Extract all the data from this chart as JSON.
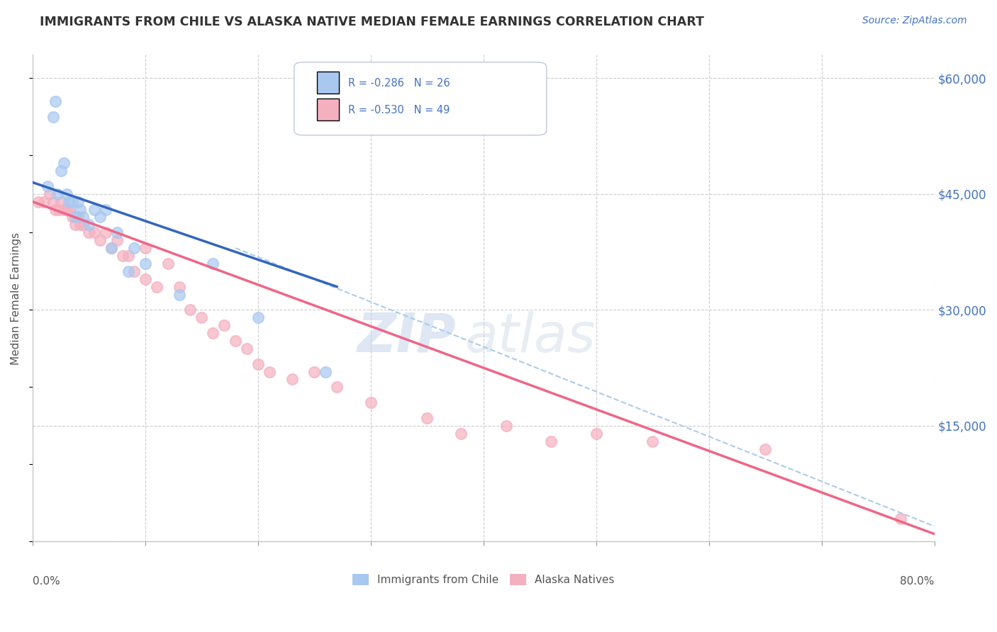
{
  "title": "IMMIGRANTS FROM CHILE VS ALASKA NATIVE MEDIAN FEMALE EARNINGS CORRELATION CHART",
  "source": "Source: ZipAtlas.com",
  "ylabel": "Median Female Earnings",
  "y_ticks": [
    0,
    15000,
    30000,
    45000,
    60000
  ],
  "y_tick_labels": [
    "",
    "$15,000",
    "$30,000",
    "$45,000",
    "$60,000"
  ],
  "x_ticks": [
    0.0,
    0.1,
    0.2,
    0.3,
    0.4,
    0.5,
    0.6,
    0.7,
    0.8
  ],
  "xlim": [
    0.0,
    0.8
  ],
  "ylim": [
    0,
    63000
  ],
  "chile_points_x": [
    0.013,
    0.018,
    0.02,
    0.022,
    0.025,
    0.028,
    0.03,
    0.032,
    0.035,
    0.038,
    0.04,
    0.042,
    0.045,
    0.05,
    0.055,
    0.06,
    0.065,
    0.07,
    0.075,
    0.085,
    0.09,
    0.1,
    0.13,
    0.16,
    0.2,
    0.26
  ],
  "chile_points_y": [
    46000,
    55000,
    57000,
    45000,
    48000,
    49000,
    45000,
    44000,
    44000,
    42000,
    44000,
    43000,
    42000,
    41000,
    43000,
    42000,
    43000,
    38000,
    40000,
    35000,
    38000,
    36000,
    32000,
    36000,
    29000,
    22000
  ],
  "alaska_points_x": [
    0.005,
    0.01,
    0.015,
    0.018,
    0.02,
    0.023,
    0.025,
    0.028,
    0.03,
    0.032,
    0.035,
    0.038,
    0.04,
    0.042,
    0.045,
    0.05,
    0.055,
    0.06,
    0.065,
    0.07,
    0.075,
    0.08,
    0.085,
    0.09,
    0.1,
    0.1,
    0.11,
    0.12,
    0.13,
    0.14,
    0.15,
    0.16,
    0.17,
    0.18,
    0.19,
    0.2,
    0.21,
    0.23,
    0.25,
    0.27,
    0.3,
    0.35,
    0.38,
    0.42,
    0.46,
    0.5,
    0.55,
    0.65,
    0.77
  ],
  "alaska_points_y": [
    44000,
    44000,
    45000,
    44000,
    43000,
    43000,
    44000,
    43000,
    43000,
    43000,
    42000,
    41000,
    42000,
    41000,
    41000,
    40000,
    40000,
    39000,
    40000,
    38000,
    39000,
    37000,
    37000,
    35000,
    34000,
    38000,
    33000,
    36000,
    33000,
    30000,
    29000,
    27000,
    28000,
    26000,
    25000,
    23000,
    22000,
    21000,
    22000,
    20000,
    18000,
    16000,
    14000,
    15000,
    13000,
    14000,
    13000,
    12000,
    3000
  ],
  "chile_line_x": [
    0.0,
    0.27
  ],
  "chile_line_y": [
    46500,
    33000
  ],
  "alaska_line_x": [
    0.0,
    0.8
  ],
  "alaska_line_y": [
    44000,
    1000
  ],
  "dashed_line_x": [
    0.18,
    0.8
  ],
  "dashed_line_y": [
    38000,
    2000
  ],
  "background_color": "#ffffff",
  "grid_color": "#cccccc",
  "title_color": "#333333",
  "source_color": "#4472c4",
  "chile_dot_color": "#a8c8f0",
  "alaska_dot_color": "#f5b0c0",
  "chile_line_color": "#3366bb",
  "alaska_line_color": "#ee6688",
  "dashed_line_color": "#aaccee",
  "right_label_color": "#4472c4",
  "watermark_color": "#dde8f5",
  "legend_box_color": "#f0f5ff",
  "legend_border_color": "#c0c8d8"
}
